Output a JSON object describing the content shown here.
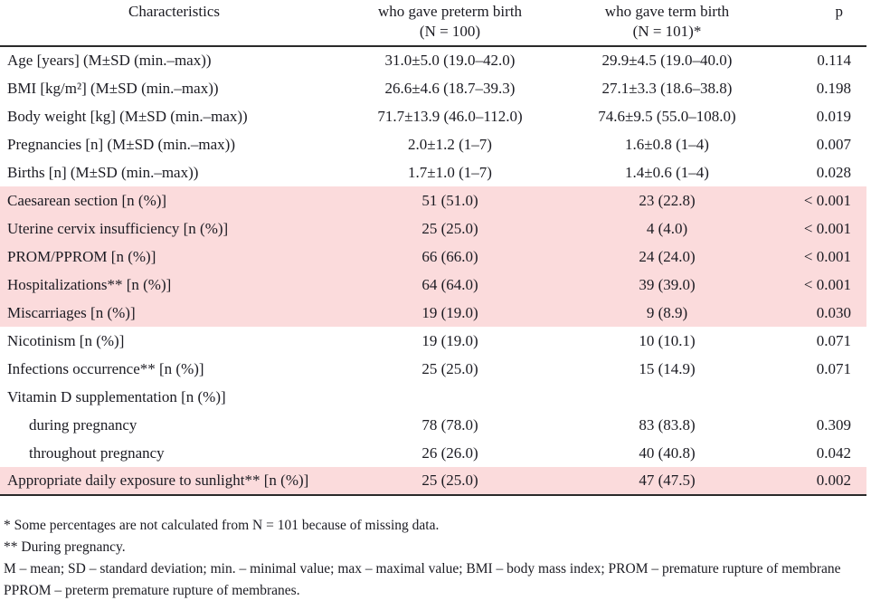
{
  "table": {
    "headers": {
      "col1": "Characteristics",
      "col2_line1": "who gave preterm birth",
      "col2_line2": "(N = 100)",
      "col3_line1": "who gave term birth",
      "col3_line2": "(N = 101)*",
      "col4": "p"
    },
    "rows": [
      {
        "label": "Age [years] (M±SD (min.–max))",
        "preterm": "31.0±5.0 (19.0–42.0)",
        "term": "29.9±4.5 (19.0–40.0)",
        "p": "0.114",
        "highlight": false,
        "indent": false
      },
      {
        "label": "BMI [kg/m²] (M±SD (min.–max))",
        "preterm": "26.6±4.6 (18.7–39.3)",
        "term": "27.1±3.3 (18.6–38.8)",
        "p": "0.198",
        "highlight": false,
        "indent": false
      },
      {
        "label": "Body weight [kg] (M±SD (min.–max))",
        "preterm": "71.7±13.9 (46.0–112.0)",
        "term": "74.6±9.5 (55.0–108.0)",
        "p": "0.019",
        "highlight": false,
        "indent": false
      },
      {
        "label": "Pregnancies [n] (M±SD (min.–max))",
        "preterm": "2.0±1.2 (1–7)",
        "term": "1.6±0.8 (1–4)",
        "p": "0.007",
        "highlight": false,
        "indent": false
      },
      {
        "label": "Births [n] (M±SD (min.–max))",
        "preterm": "1.7±1.0 (1–7)",
        "term": "1.4±0.6 (1–4)",
        "p": "0.028",
        "highlight": false,
        "indent": false
      },
      {
        "label": "Caesarean section [n (%)]",
        "preterm": "51 (51.0)",
        "term": "23 (22.8)",
        "p": "< 0.001",
        "highlight": true,
        "indent": false
      },
      {
        "label": "Uterine cervix insufficiency [n (%)]",
        "preterm": "25 (25.0)",
        "term": "4 (4.0)",
        "p": "< 0.001",
        "highlight": true,
        "indent": false
      },
      {
        "label": "PROM/PPROM [n (%)]",
        "preterm": "66 (66.0)",
        "term": "24 (24.0)",
        "p": "< 0.001",
        "highlight": true,
        "indent": false
      },
      {
        "label": "Hospitalizations** [n (%)]",
        "preterm": "64 (64.0)",
        "term": "39 (39.0)",
        "p": "< 0.001",
        "highlight": true,
        "indent": false
      },
      {
        "label": "Miscarriages [n (%)]",
        "preterm": "19 (19.0)",
        "term": "9 (8.9)",
        "p": "0.030",
        "highlight": true,
        "indent": false
      },
      {
        "label": "Nicotinism [n (%)]",
        "preterm": "19 (19.0)",
        "term": "10 (10.1)",
        "p": "0.071",
        "highlight": false,
        "indent": false
      },
      {
        "label": "Infections occurrence** [n (%)]",
        "preterm": "25 (25.0)",
        "term": "15 (14.9)",
        "p": "0.071",
        "highlight": false,
        "indent": false
      },
      {
        "label": "Vitamin D supplementation [n (%)]",
        "preterm": "",
        "term": "",
        "p": "",
        "highlight": false,
        "indent": false
      },
      {
        "label": "during pregnancy",
        "preterm": "78 (78.0)",
        "term": "83 (83.8)",
        "p": "0.309",
        "highlight": false,
        "indent": true
      },
      {
        "label": "throughout pregnancy",
        "preterm": "26 (26.0)",
        "term": "40 (40.8)",
        "p": "0.042",
        "highlight": false,
        "indent": true
      },
      {
        "label": "Appropriate daily exposure to sunlight** [n (%)]",
        "preterm": "25 (25.0)",
        "term": "47 (47.5)",
        "p": "0.002",
        "highlight": true,
        "indent": false
      }
    ]
  },
  "footnotes": [
    "* Some percentages are not calculated from N = 101 because of missing data.",
    "** During pregnancy.",
    "M – mean; SD – standard deviation; min. – minimal value; max – maximal value; BMI – body mass index; PROM – premature rupture of membrane",
    "PPROM – preterm premature rupture of membranes."
  ],
  "colors": {
    "highlight_row": "#FBDBDC",
    "text": "#1b1b22",
    "rule": "#2a2a2a"
  }
}
